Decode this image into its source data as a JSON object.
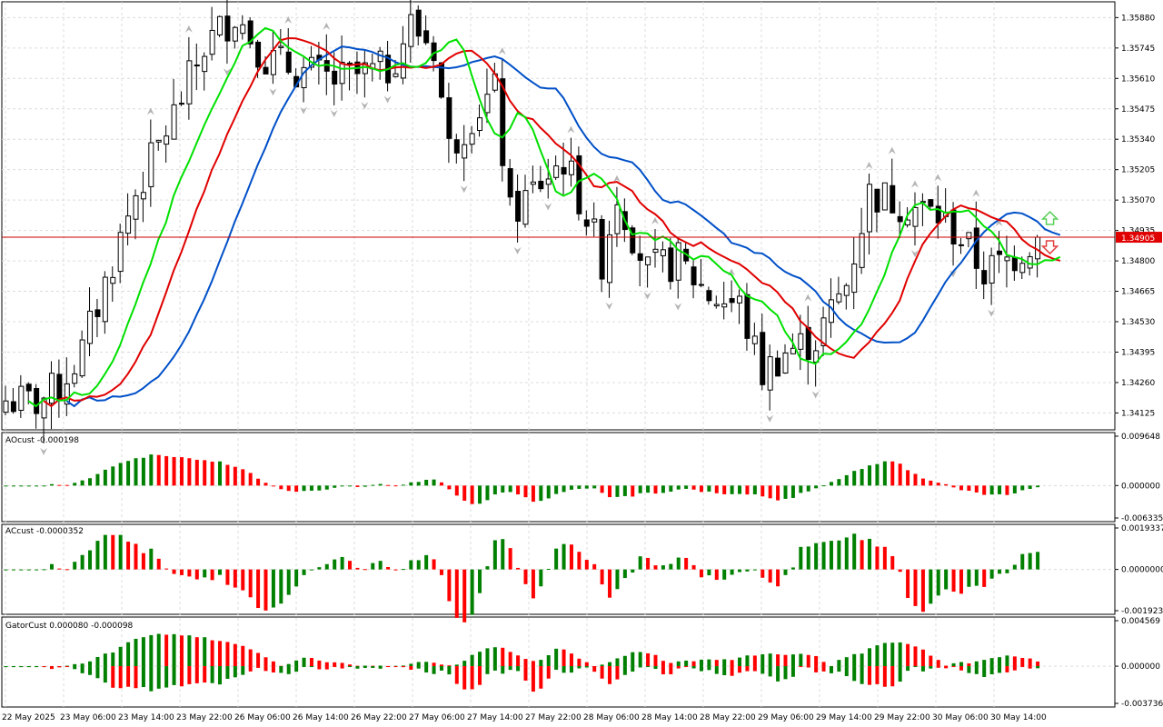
{
  "colors": {
    "background": "#ffffff",
    "grid": "#dcdcdc",
    "candle": "#000000",
    "ma_green": "#00e000",
    "ma_red": "#e00000",
    "ma_blue": "#0050c8",
    "bar_up": "#008000",
    "bar_down": "#ff0000",
    "price_line": "#c80000",
    "price_tag_bg": "#e00000",
    "fractal": "#b4b4b4",
    "arrow_up": "#5ad05a",
    "arrow_down": "#e04040"
  },
  "main": {
    "price_levels": [
      "1.35880",
      "1.35745",
      "1.35610",
      "1.35475",
      "1.35340",
      "1.35205",
      "1.35070",
      "1.34935",
      "1.34800",
      "1.34665",
      "1.34530",
      "1.34395",
      "1.34260",
      "1.34125"
    ],
    "current_price": "1.34905",
    "current_price_value": 1.34905
  },
  "indicators": [
    {
      "label": "AOcust -0.000198",
      "max_label": "0.009648",
      "zero_label": "0.000000",
      "min_label": "-0.006335"
    },
    {
      "label": "ACcust -0.0000352",
      "max_label": "0.0019337",
      "zero_label": "0.0000000",
      "min_label": "-0.0019231"
    },
    {
      "label": "GatorCust 0.000080 -0.000098",
      "max_label": "0.004569",
      "zero_label": "0.000000",
      "min_label": "-0.003736"
    }
  ],
  "time_labels": [
    "22 May 2025",
    "23 May 06:00",
    "23 May 14:00",
    "23 May 22:00",
    "26 May 06:00",
    "26 May 14:00",
    "26 May 22:00",
    "27 May 06:00",
    "27 May 14:00",
    "27 May 22:00",
    "28 May 06:00",
    "28 May 14:00",
    "28 May 22:00",
    "29 May 06:00",
    "29 May 14:00",
    "29 May 22:00",
    "30 May 06:00",
    "30 May 14:00"
  ],
  "chart_data": {
    "type": "candlestick",
    "timeframe_bars": 136,
    "ylim": [
      1.3405,
      1.3595
    ],
    "close_path": [
      [
        0,
        1.3418
      ],
      [
        4,
        1.3417
      ],
      [
        7,
        1.3424
      ],
      [
        10,
        1.344
      ],
      [
        14,
        1.348
      ],
      [
        17,
        1.351
      ],
      [
        22,
        1.3545
      ],
      [
        26,
        1.3575
      ],
      [
        30,
        1.359
      ],
      [
        34,
        1.357
      ],
      [
        38,
        1.3565
      ],
      [
        43,
        1.356
      ],
      [
        50,
        1.3565
      ],
      [
        53,
        1.3585
      ],
      [
        56,
        1.3575
      ],
      [
        58,
        1.353
      ],
      [
        61,
        1.3545
      ],
      [
        64,
        1.3555
      ],
      [
        66,
        1.35
      ],
      [
        70,
        1.3515
      ],
      [
        73,
        1.3525
      ],
      [
        76,
        1.35
      ],
      [
        78,
        1.348
      ],
      [
        80,
        1.351
      ],
      [
        84,
        1.3475
      ],
      [
        88,
        1.348
      ],
      [
        92,
        1.3465
      ],
      [
        96,
        1.346
      ],
      [
        99,
        1.343
      ],
      [
        102,
        1.344
      ],
      [
        106,
        1.3445
      ],
      [
        110,
        1.347
      ],
      [
        113,
        1.351
      ],
      [
        118,
        1.3505
      ],
      [
        122,
        1.35
      ],
      [
        125,
        1.349
      ],
      [
        128,
        1.3475
      ],
      [
        131,
        1.348
      ],
      [
        135,
        1.34905
      ]
    ],
    "ma_green_last": 1.3478,
    "ma_red_last": 1.3479,
    "ma_blue_last": 1.3481,
    "ao_range": [
      -0.006335,
      0.009648
    ],
    "ac_range": [
      -0.0019231,
      0.0019337
    ],
    "gator_range": [
      -0.003736,
      0.004569
    ]
  }
}
